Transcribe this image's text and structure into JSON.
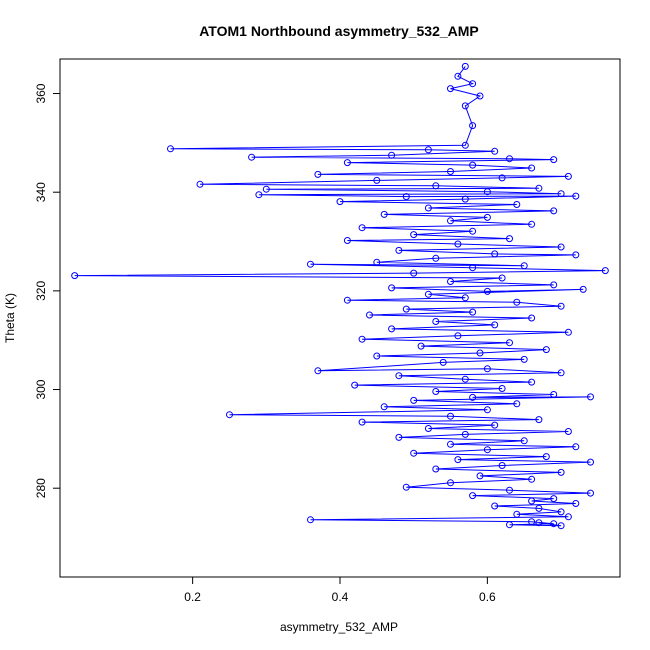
{
  "chart_data": {
    "type": "line",
    "title": "ATOM1 Northbound asymmetry_532_AMP",
    "xlabel": "asymmetry_532_AMP",
    "ylabel": "Theta (K)",
    "xlim": [
      0.02,
      0.78
    ],
    "ylim": [
      262,
      367
    ],
    "xticks": [
      "0.2",
      "0.4",
      "0.6"
    ],
    "yticks": [
      "280",
      "300",
      "320",
      "340",
      "360"
    ],
    "grid": false,
    "legend": "none",
    "series": [
      {
        "marker": "open-circle",
        "color": "#0000ff",
        "points": [
          [
            0.57,
            365.5
          ],
          [
            0.56,
            363.5
          ],
          [
            0.58,
            362
          ],
          [
            0.55,
            361
          ],
          [
            0.59,
            359.5
          ],
          [
            0.57,
            357.5
          ],
          [
            0.58,
            353.5
          ],
          [
            0.57,
            349.5
          ],
          [
            0.17,
            348.8
          ],
          [
            0.52,
            348.6
          ],
          [
            0.61,
            348.3
          ],
          [
            0.47,
            347.5
          ],
          [
            0.28,
            347.1
          ],
          [
            0.63,
            346.8
          ],
          [
            0.69,
            346.6
          ],
          [
            0.41,
            346
          ],
          [
            0.58,
            345.5
          ],
          [
            0.66,
            344.9
          ],
          [
            0.55,
            344.2
          ],
          [
            0.37,
            343.6
          ],
          [
            0.71,
            343.2
          ],
          [
            0.62,
            342.9
          ],
          [
            0.45,
            342.4
          ],
          [
            0.21,
            341.6
          ],
          [
            0.53,
            341.3
          ],
          [
            0.67,
            340.8
          ],
          [
            0.3,
            340.6
          ],
          [
            0.6,
            340.1
          ],
          [
            0.7,
            339.7
          ],
          [
            0.29,
            339.5
          ],
          [
            0.49,
            339.1
          ],
          [
            0.72,
            339.2
          ],
          [
            0.57,
            338.6
          ],
          [
            0.4,
            338.1
          ],
          [
            0.64,
            337.5
          ],
          [
            0.52,
            336.8
          ],
          [
            0.69,
            336.2
          ],
          [
            0.46,
            335.5
          ],
          [
            0.6,
            334.9
          ],
          [
            0.55,
            334.2
          ],
          [
            0.66,
            333.5
          ],
          [
            0.43,
            332.8
          ],
          [
            0.58,
            332.1
          ],
          [
            0.5,
            331.4
          ],
          [
            0.63,
            330.6
          ],
          [
            0.41,
            330.2
          ],
          [
            0.56,
            329.5
          ],
          [
            0.7,
            328.9
          ],
          [
            0.48,
            328.2
          ],
          [
            0.61,
            327.5
          ],
          [
            0.72,
            327.3
          ],
          [
            0.53,
            326.6
          ],
          [
            0.45,
            325.8
          ],
          [
            0.65,
            325.1
          ],
          [
            0.36,
            325.4
          ],
          [
            0.58,
            324.7
          ],
          [
            0.76,
            324.1
          ],
          [
            0.5,
            323.6
          ],
          [
            0.04,
            323.1
          ],
          [
            0.62,
            322.6
          ],
          [
            0.55,
            321.9
          ],
          [
            0.69,
            321.2
          ],
          [
            0.47,
            320.6
          ],
          [
            0.6,
            319.9
          ],
          [
            0.73,
            320.3
          ],
          [
            0.52,
            319.3
          ],
          [
            0.57,
            318.6
          ],
          [
            0.41,
            318.1
          ],
          [
            0.64,
            317.7
          ],
          [
            0.7,
            316.9
          ],
          [
            0.49,
            316.3
          ],
          [
            0.58,
            315.7
          ],
          [
            0.44,
            315.1
          ],
          [
            0.66,
            314.5
          ],
          [
            0.53,
            313.8
          ],
          [
            0.61,
            313.1
          ],
          [
            0.47,
            312.3
          ],
          [
            0.71,
            311.6
          ],
          [
            0.56,
            310.9
          ],
          [
            0.43,
            310.2
          ],
          [
            0.63,
            309.5
          ],
          [
            0.51,
            308.8
          ],
          [
            0.68,
            308.1
          ],
          [
            0.59,
            307.4
          ],
          [
            0.45,
            306.8
          ],
          [
            0.65,
            306.1
          ],
          [
            0.54,
            305.5
          ],
          [
            0.37,
            303.8
          ],
          [
            0.6,
            304.2
          ],
          [
            0.7,
            303.4
          ],
          [
            0.48,
            302.8
          ],
          [
            0.57,
            302.1
          ],
          [
            0.66,
            301.5
          ],
          [
            0.42,
            300.9
          ],
          [
            0.62,
            300.2
          ],
          [
            0.53,
            299.6
          ],
          [
            0.69,
            299
          ],
          [
            0.58,
            298.4
          ],
          [
            0.74,
            298.5
          ],
          [
            0.5,
            297.8
          ],
          [
            0.64,
            297.1
          ],
          [
            0.46,
            296.5
          ],
          [
            0.6,
            295.9
          ],
          [
            0.25,
            294.9
          ],
          [
            0.55,
            294.6
          ],
          [
            0.67,
            293.9
          ],
          [
            0.43,
            293.4
          ],
          [
            0.61,
            292.8
          ],
          [
            0.52,
            292.1
          ],
          [
            0.71,
            291.5
          ],
          [
            0.57,
            290.9
          ],
          [
            0.48,
            290.3
          ],
          [
            0.65,
            289.6
          ],
          [
            0.55,
            288.9
          ],
          [
            0.72,
            288.4
          ],
          [
            0.6,
            287.8
          ],
          [
            0.5,
            287.1
          ],
          [
            0.68,
            286.4
          ],
          [
            0.56,
            285.8
          ],
          [
            0.74,
            285.3
          ],
          [
            0.62,
            284.6
          ],
          [
            0.53,
            283.9
          ],
          [
            0.7,
            283.2
          ],
          [
            0.59,
            282.5
          ],
          [
            0.66,
            281.8
          ],
          [
            0.55,
            281.1
          ],
          [
            0.49,
            280.2
          ],
          [
            0.63,
            279.6
          ],
          [
            0.74,
            279
          ],
          [
            0.58,
            278.5
          ],
          [
            0.69,
            277.9
          ],
          [
            0.66,
            277.4
          ],
          [
            0.72,
            276.9
          ],
          [
            0.61,
            276.4
          ],
          [
            0.67,
            275.9
          ],
          [
            0.7,
            275.2
          ],
          [
            0.64,
            274.7
          ],
          [
            0.71,
            274.2
          ],
          [
            0.36,
            273.6
          ],
          [
            0.66,
            273.2
          ],
          [
            0.69,
            272.8
          ],
          [
            0.63,
            272.6
          ],
          [
            0.7,
            272.4
          ],
          [
            0.67,
            273
          ]
        ]
      }
    ]
  }
}
